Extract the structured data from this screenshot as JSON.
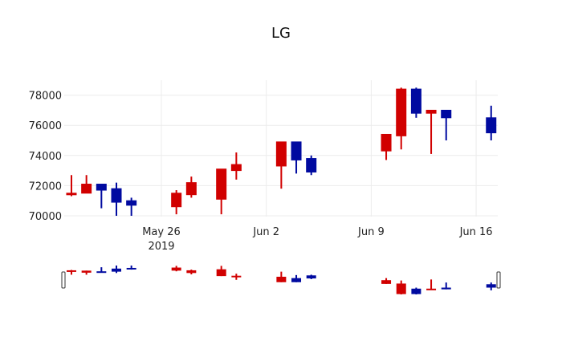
{
  "title": "LG",
  "colors": {
    "increasing": "#d10000",
    "decreasing": "#000aa0",
    "grid": "#ececec",
    "background": "#ffffff"
  },
  "x_ticks": [
    {
      "label": "May 26",
      "sub": "2019",
      "date": "2019-05-26"
    },
    {
      "label": "Jun 2",
      "sub": "",
      "date": "2019-06-02"
    },
    {
      "label": "Jun 9",
      "sub": "",
      "date": "2019-06-09"
    },
    {
      "label": "Jun 16",
      "sub": "",
      "date": "2019-06-16"
    }
  ],
  "y_ticks": [
    "70000",
    "72000",
    "74000",
    "76000",
    "78000"
  ],
  "chart_data": {
    "type": "candlestick",
    "title": "LG",
    "xlabel": "",
    "ylabel": "",
    "ylim": [
      69900,
      79000
    ],
    "xlim": [
      "2019-05-19T12:00",
      "2019-06-17T12:00"
    ],
    "grid": true,
    "rangeslider": true,
    "increasing_color": "#d10000",
    "decreasing_color": "#000aa0",
    "x_tick_labels": [
      "May 26\n2019",
      "Jun 2",
      "Jun 9",
      "Jun 16"
    ],
    "y_tick_labels": [
      "70000",
      "72000",
      "74000",
      "76000",
      "78000"
    ],
    "data": [
      {
        "date": "2019-05-20",
        "open": 71400,
        "high": 72700,
        "low": 71300,
        "close": 71500
      },
      {
        "date": "2019-05-21",
        "open": 71500,
        "high": 72700,
        "low": 71500,
        "close": 72100
      },
      {
        "date": "2019-05-22",
        "open": 72100,
        "high": 72100,
        "low": 70500,
        "close": 71700
      },
      {
        "date": "2019-05-23",
        "open": 71800,
        "high": 72200,
        "low": 70000,
        "close": 70900
      },
      {
        "date": "2019-05-24",
        "open": 71000,
        "high": 71200,
        "low": 70000,
        "close": 70700
      },
      {
        "date": "2019-05-27",
        "open": 70600,
        "high": 71700,
        "low": 70100,
        "close": 71500
      },
      {
        "date": "2019-05-28",
        "open": 71400,
        "high": 72600,
        "low": 71200,
        "close": 72200
      },
      {
        "date": "2019-05-30",
        "open": 71100,
        "high": 73100,
        "low": 70100,
        "close": 73100
      },
      {
        "date": "2019-05-31",
        "open": 73000,
        "high": 74200,
        "low": 72400,
        "close": 73400
      },
      {
        "date": "2019-06-03",
        "open": 73300,
        "high": 74900,
        "low": 71800,
        "close": 74900
      },
      {
        "date": "2019-06-04",
        "open": 74900,
        "high": 74900,
        "low": 72800,
        "close": 73700
      },
      {
        "date": "2019-06-05",
        "open": 73800,
        "high": 74000,
        "low": 72700,
        "close": 72900
      },
      {
        "date": "2019-06-10",
        "open": 74300,
        "high": 75400,
        "low": 73700,
        "close": 75400
      },
      {
        "date": "2019-06-11",
        "open": 75300,
        "high": 78500,
        "low": 74400,
        "close": 78400
      },
      {
        "date": "2019-06-12",
        "open": 78400,
        "high": 78500,
        "low": 76500,
        "close": 76800
      },
      {
        "date": "2019-06-13",
        "open": 76800,
        "high": 77000,
        "low": 74100,
        "close": 77000
      },
      {
        "date": "2019-06-14",
        "open": 77000,
        "high": 77000,
        "low": 75000,
        "close": 76500
      },
      {
        "date": "2019-06-17",
        "open": 76500,
        "high": 77300,
        "low": 75000,
        "close": 75500
      }
    ]
  }
}
